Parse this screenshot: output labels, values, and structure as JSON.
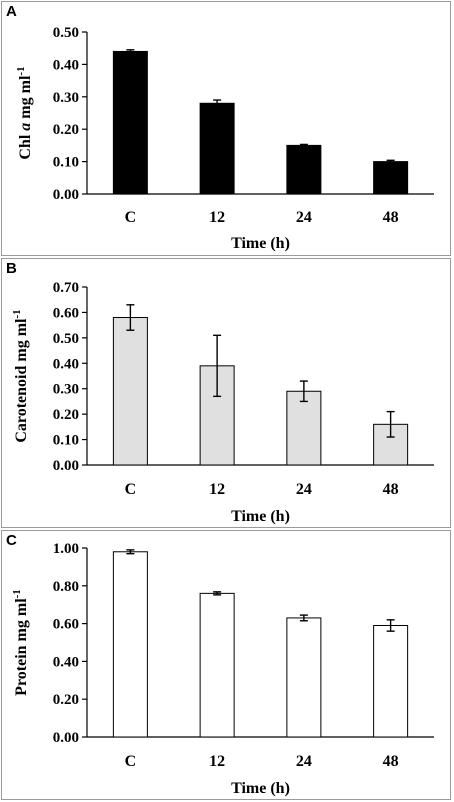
{
  "chart_data": [
    {
      "panel": "A",
      "type": "bar",
      "categories": [
        "C",
        "12",
        "24",
        "48"
      ],
      "values": [
        0.44,
        0.28,
        0.15,
        0.1
      ],
      "errors": [
        0.005,
        0.01,
        0.003,
        0.004
      ],
      "ylabel_main": "Chl ",
      "ylabel_italic": "a",
      "ylabel_unit": " mg ml",
      "ylabel_sup": "-1",
      "xlabel": "Time (h)",
      "ylim": [
        0,
        0.5
      ],
      "yticks": [
        "0.00",
        "0.10",
        "0.20",
        "0.30",
        "0.40",
        "0.50"
      ],
      "bar_color": "#000000",
      "grid": false
    },
    {
      "panel": "B",
      "type": "bar",
      "categories": [
        "C",
        "12",
        "24",
        "48"
      ],
      "values": [
        0.58,
        0.39,
        0.29,
        0.16
      ],
      "errors": [
        0.05,
        0.12,
        0.04,
        0.05
      ],
      "ylabel_main": "Carotenoid",
      "ylabel_italic": "",
      "ylabel_unit": " mg ml",
      "ylabel_sup": "-1",
      "xlabel": "Time (h)",
      "ylim": [
        0,
        0.7
      ],
      "yticks": [
        "0.00",
        "0.10",
        "0.20",
        "0.30",
        "0.40",
        "0.50",
        "0.60",
        "0.70"
      ],
      "bar_color": "#e0e0e0",
      "grid": false
    },
    {
      "panel": "C",
      "type": "bar",
      "categories": [
        "C",
        "12",
        "24",
        "48"
      ],
      "values": [
        0.98,
        0.76,
        0.63,
        0.59
      ],
      "errors": [
        0.01,
        0.008,
        0.015,
        0.03
      ],
      "ylabel_main": "Protein",
      "ylabel_italic": "",
      "ylabel_unit": " mg ml",
      "ylabel_sup": "-1",
      "xlabel": "Time (h)",
      "ylim": [
        0,
        1.0
      ],
      "yticks": [
        "0.00",
        "0.20",
        "0.40",
        "0.60",
        "0.80",
        "1.00"
      ],
      "bar_color": "#ffffff",
      "grid": false
    }
  ]
}
